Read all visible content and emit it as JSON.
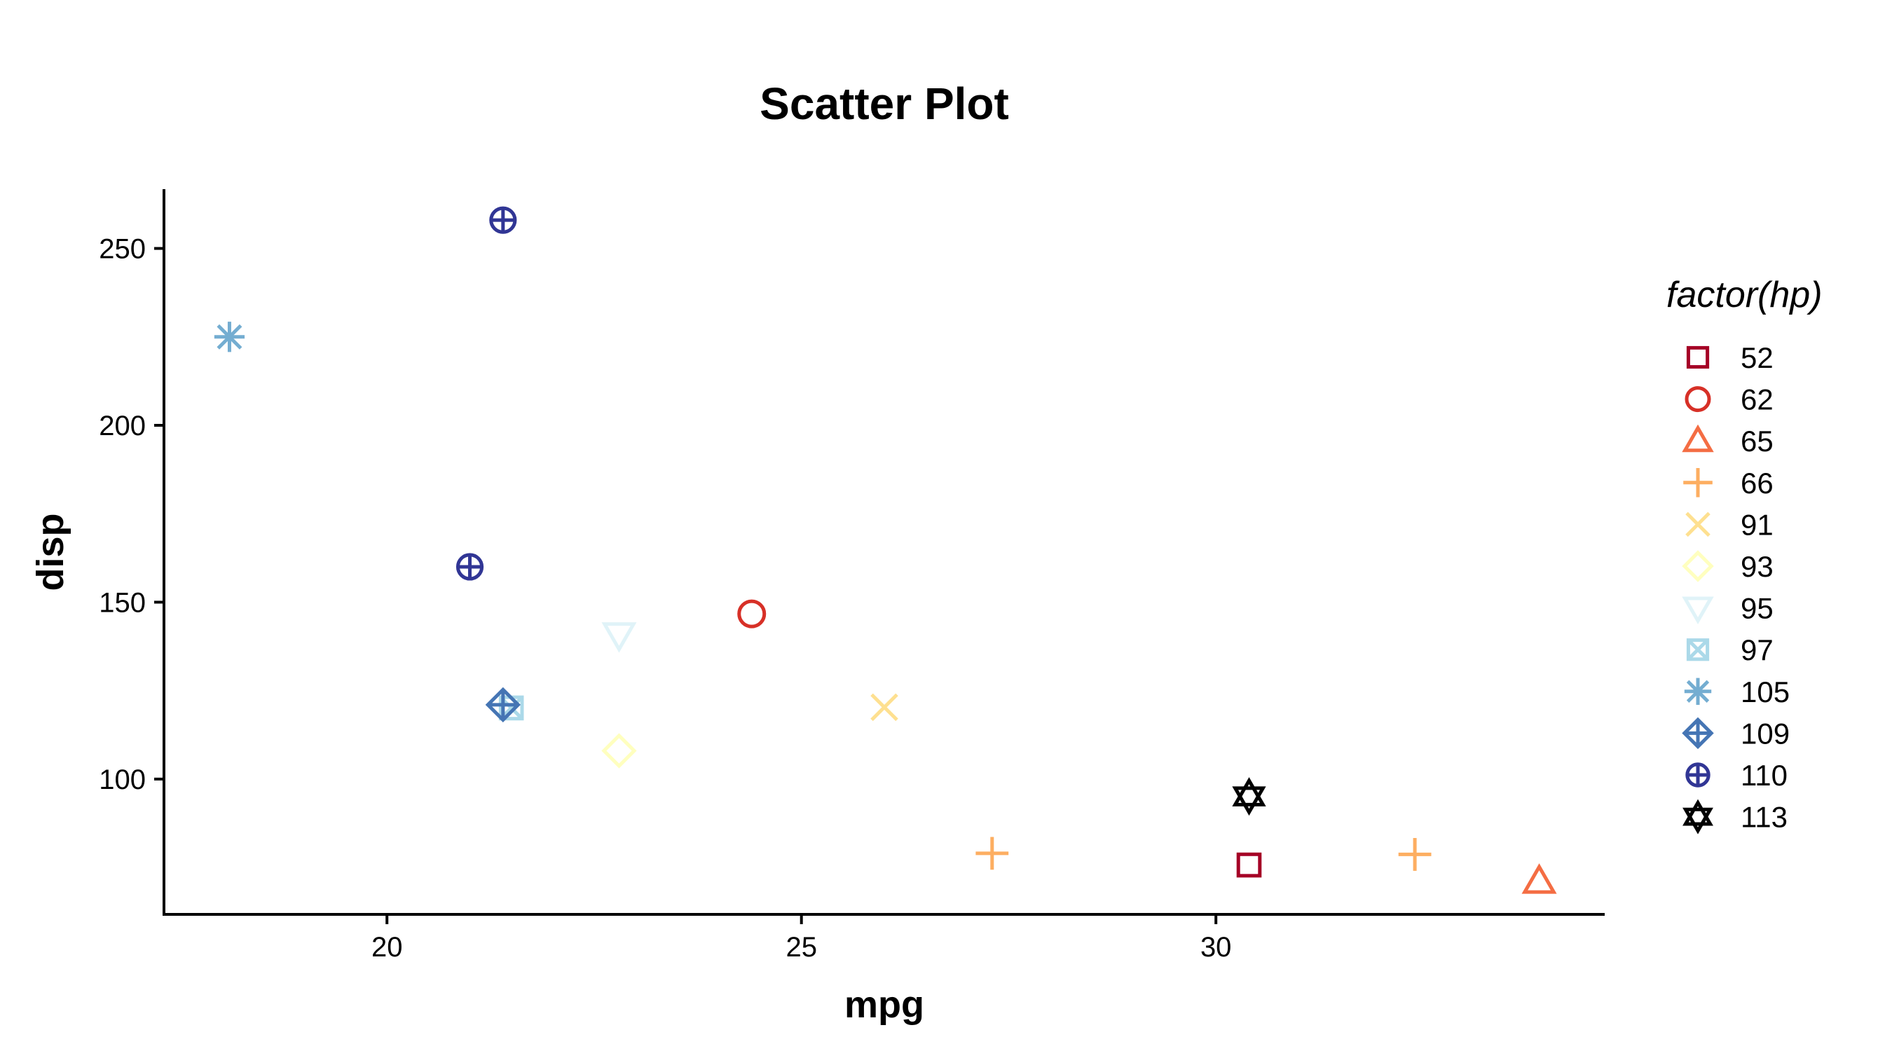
{
  "chart_data": {
    "type": "scatter",
    "title": "Scatter Plot",
    "xlabel": "mpg",
    "ylabel": "disp",
    "xlim": [
      17.31,
      34.69
    ],
    "ylim": [
      61.75,
      266.75
    ],
    "x_ticks": [
      20,
      25,
      30
    ],
    "y_ticks": [
      100,
      150,
      200,
      250
    ],
    "grid": false,
    "legend": {
      "title": "factor(hp)",
      "position": "right",
      "entries": [
        {
          "label": "52",
          "shape": "square",
          "color": "#A50026"
        },
        {
          "label": "62",
          "shape": "circle",
          "color": "#D73027"
        },
        {
          "label": "65",
          "shape": "triangle-up",
          "color": "#F46D43"
        },
        {
          "label": "66",
          "shape": "plus",
          "color": "#FDAE61"
        },
        {
          "label": "91",
          "shape": "cross",
          "color": "#FEE090"
        },
        {
          "label": "93",
          "shape": "diamond",
          "color": "#FFFFBF"
        },
        {
          "label": "95",
          "shape": "triangle-down",
          "color": "#E0F3F8"
        },
        {
          "label": "97",
          "shape": "square-cross",
          "color": "#ABD9E9"
        },
        {
          "label": "105",
          "shape": "asterisk",
          "color": "#74ADD1"
        },
        {
          "label": "109",
          "shape": "diamond-plus",
          "color": "#4575B4"
        },
        {
          "label": "110",
          "shape": "circle-plus",
          "color": "#313695"
        },
        {
          "label": "113",
          "shape": "star-of-david",
          "color": "#000000"
        }
      ]
    },
    "points": [
      {
        "x": 30.4,
        "y": 75.7,
        "hp": "52"
      },
      {
        "x": 24.4,
        "y": 146.7,
        "hp": "62"
      },
      {
        "x": 33.9,
        "y": 71.1,
        "hp": "65"
      },
      {
        "x": 32.4,
        "y": 78.7,
        "hp": "66"
      },
      {
        "x": 27.3,
        "y": 79.0,
        "hp": "66"
      },
      {
        "x": 26.0,
        "y": 120.3,
        "hp": "91"
      },
      {
        "x": 22.8,
        "y": 108.0,
        "hp": "93"
      },
      {
        "x": 22.8,
        "y": 140.8,
        "hp": "95"
      },
      {
        "x": 21.5,
        "y": 120.1,
        "hp": "97"
      },
      {
        "x": 18.1,
        "y": 225.0,
        "hp": "105"
      },
      {
        "x": 21.4,
        "y": 121.0,
        "hp": "109"
      },
      {
        "x": 21.0,
        "y": 160.0,
        "hp": "110"
      },
      {
        "x": 21.4,
        "y": 258.0,
        "hp": "110"
      },
      {
        "x": 30.4,
        "y": 95.1,
        "hp": "113"
      }
    ]
  }
}
